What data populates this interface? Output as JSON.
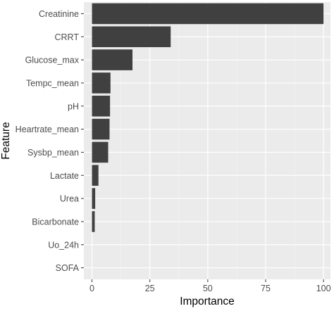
{
  "chart_data": {
    "type": "bar",
    "orientation": "horizontal",
    "categories": [
      "Creatinine",
      "CRRT",
      "Glucose_max",
      "Tempc_mean",
      "pH",
      "Heartrate_mean",
      "Sysbp_mean",
      "Lactate",
      "Urea",
      "Bicarbonate",
      "Uo_24h",
      "SOFA"
    ],
    "values": [
      100,
      34,
      17.5,
      8,
      7.8,
      7.6,
      7,
      2.8,
      1.4,
      1.2,
      0,
      0
    ],
    "xlabel": "Importance",
    "ylabel": "Feature",
    "xlim": [
      -3.5,
      103
    ],
    "xticks": [
      0,
      25,
      50,
      75,
      100
    ],
    "grid": true,
    "colors": {
      "bar": "#404040",
      "panel": "#ebebeb",
      "grid_major": "#ffffff",
      "grid_minor": "#f3f3f3",
      "tick_label": "#4d4d4d",
      "axis_title": "#000000"
    }
  }
}
